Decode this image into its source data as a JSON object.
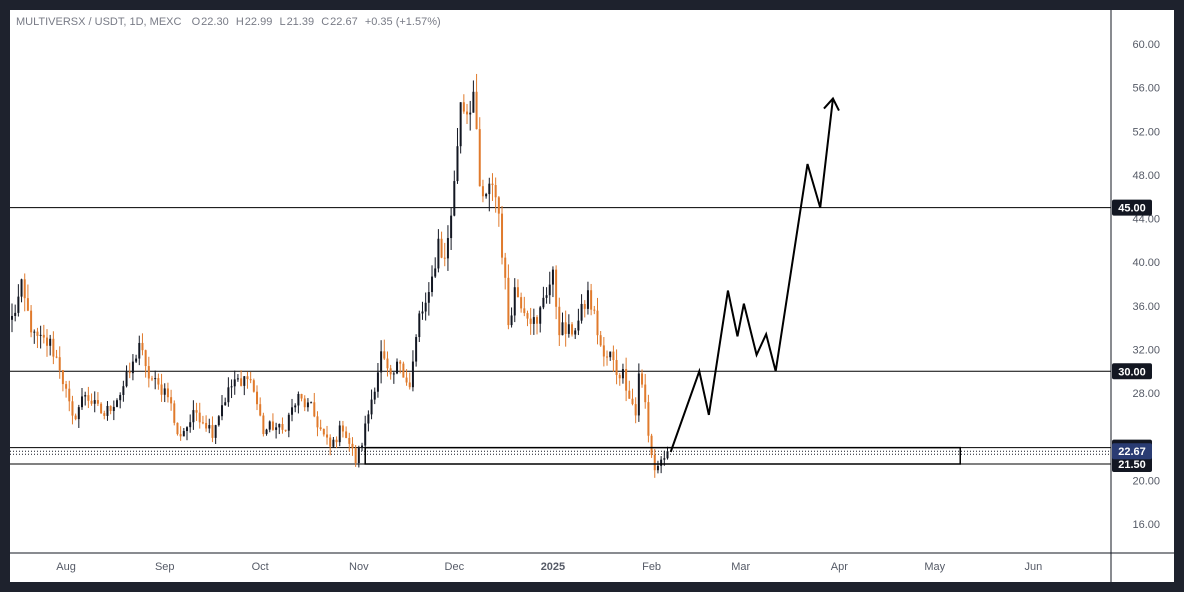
{
  "header": {
    "symbol": "MULTIVERSX / USDT, 1D, MEXC",
    "open_label": "O",
    "open": "22.30",
    "high_label": "H",
    "high": "22.99",
    "low_label": "L",
    "low": "21.39",
    "close_label": "C",
    "close": "22.67",
    "change": "+0.35 (+1.57%)"
  },
  "chart_data": {
    "type": "candlestick",
    "y_ticks": [
      "60.00",
      "56.00",
      "52.00",
      "48.00",
      "44.00",
      "40.00",
      "36.00",
      "32.00",
      "28.00",
      "20.00",
      "16.00"
    ],
    "ylim": [
      12.5,
      62
    ],
    "x_labels": [
      {
        "label": "Aug",
        "day": 17
      },
      {
        "label": "Sep",
        "day": 48
      },
      {
        "label": "Oct",
        "day": 78
      },
      {
        "label": "Nov",
        "day": 109
      },
      {
        "label": "Dec",
        "day": 139
      },
      {
        "label": "2025",
        "day": 170
      },
      {
        "label": "Feb",
        "day": 201
      },
      {
        "label": "Mar",
        "day": 229
      },
      {
        "label": "Apr",
        "day": 260
      },
      {
        "label": "May",
        "day": 290
      },
      {
        "label": "Jun",
        "day": 321
      }
    ],
    "xlim": [
      0,
      345
    ],
    "horizontal_levels": [
      {
        "value": 45.0,
        "label": "45.00"
      },
      {
        "value": 30.0,
        "label": "30.00"
      },
      {
        "value": 23.0,
        "label": "23.00"
      },
      {
        "value": 21.5,
        "label": "21.50"
      }
    ],
    "current_price": {
      "value": 22.67,
      "label": "22.67"
    },
    "support_zone": {
      "start_day": 111,
      "end_day": 298,
      "top": 23.0,
      "bottom": 21.5
    },
    "projection_path": [
      [
        207,
        22.6
      ],
      [
        216,
        30.0
      ],
      [
        219,
        26.0
      ],
      [
        225,
        37.4
      ],
      [
        228,
        33.2
      ],
      [
        230,
        36.2
      ],
      [
        234,
        31.5
      ],
      [
        237,
        33.4
      ],
      [
        240,
        30.0
      ],
      [
        250,
        49.0
      ],
      [
        254,
        45.0
      ],
      [
        258,
        55.0
      ]
    ],
    "waypoints": [
      [
        0,
        34.8
      ],
      [
        3,
        37.5
      ],
      [
        7,
        33.0
      ],
      [
        12,
        32.5
      ],
      [
        15,
        30.5
      ],
      [
        17,
        28.0
      ],
      [
        19,
        25.5
      ],
      [
        23,
        28.0
      ],
      [
        26,
        26.8
      ],
      [
        29,
        26.0
      ],
      [
        34,
        28.0
      ],
      [
        38,
        30.5
      ],
      [
        40,
        32.7
      ],
      [
        42,
        30.0
      ],
      [
        46,
        28.5
      ],
      [
        49,
        28.2
      ],
      [
        52,
        24.0
      ],
      [
        55,
        25.0
      ],
      [
        58,
        26.3
      ],
      [
        63,
        24.5
      ],
      [
        66,
        27.0
      ],
      [
        70,
        29.2
      ],
      [
        72,
        28.5
      ],
      [
        74,
        30.0
      ],
      [
        76,
        28.2
      ],
      [
        79,
        24.5
      ],
      [
        82,
        25.0
      ],
      [
        85,
        24.5
      ],
      [
        88,
        26.5
      ],
      [
        90,
        27.5
      ],
      [
        94,
        26.5
      ],
      [
        98,
        24.0
      ],
      [
        100,
        23.0
      ],
      [
        104,
        25.0
      ],
      [
        108,
        21.8
      ],
      [
        110,
        23.5
      ],
      [
        113,
        27.5
      ],
      [
        116,
        31.5
      ],
      [
        119,
        29.0
      ],
      [
        122,
        31.0
      ],
      [
        125,
        28.5
      ],
      [
        128,
        35.0
      ],
      [
        131,
        36.5
      ],
      [
        134,
        42.0
      ],
      [
        136,
        40.0
      ],
      [
        139,
        47.0
      ],
      [
        141,
        55.0
      ],
      [
        143,
        54.0
      ],
      [
        145,
        55.5
      ],
      [
        147,
        46.5
      ],
      [
        149,
        45.5
      ],
      [
        151,
        47.5
      ],
      [
        153,
        44.5
      ],
      [
        156,
        34.5
      ],
      [
        158,
        37.5
      ],
      [
        161,
        36.0
      ],
      [
        165,
        34.0
      ],
      [
        167,
        37.0
      ],
      [
        170,
        38.5
      ],
      [
        172,
        34.0
      ],
      [
        175,
        33.5
      ],
      [
        178,
        34.5
      ],
      [
        181,
        37.0
      ],
      [
        183,
        35.0
      ],
      [
        186,
        31.0
      ],
      [
        188,
        31.5
      ],
      [
        190,
        30.0
      ],
      [
        192,
        29.8
      ],
      [
        194,
        28.0
      ],
      [
        196,
        26.0
      ],
      [
        197,
        30.0
      ],
      [
        199,
        27.0
      ],
      [
        200,
        24.0
      ],
      [
        202,
        21.0
      ],
      [
        204,
        21.8
      ],
      [
        206,
        22.67
      ]
    ],
    "colors": {
      "up": "#131722",
      "down": "#e07a2c",
      "line": "#000000",
      "badge_current": "#2a3c73"
    }
  }
}
